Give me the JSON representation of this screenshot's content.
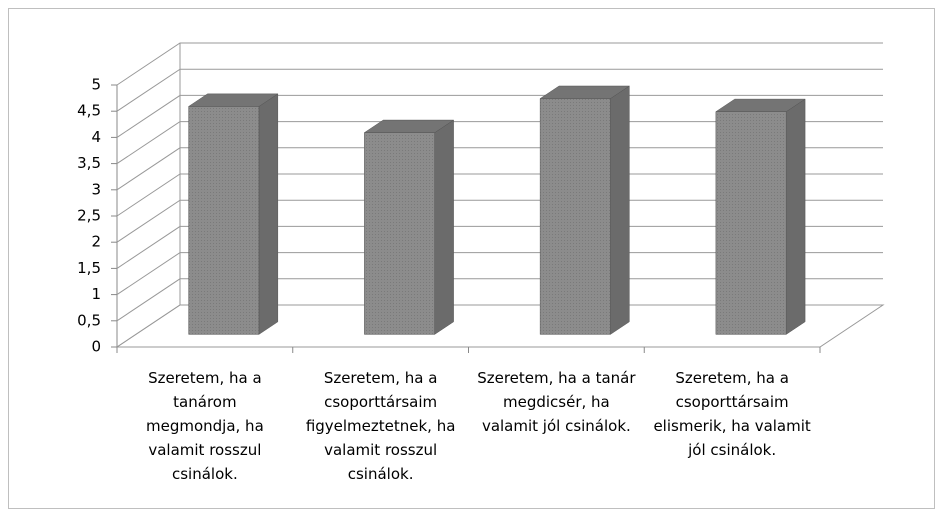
{
  "chart_data": {
    "type": "bar3d",
    "categories": [
      "Szeretem, ha a tanárom megmondja, ha valamit rosszul csinálok.",
      "Szeretem, ha a csoporttársaim figyelmeztetnek, ha valamit rosszul csinálok.",
      "Szeretem, ha a tanár megdicsér, ha valamit jól csinálok.",
      "Szeretem, ha a csoporttársaim elismerik, ha valamit jól csinálok."
    ],
    "values": [
      4.35,
      3.85,
      4.5,
      4.25
    ],
    "color": "#8c8c8c",
    "ylim": [
      0,
      5
    ],
    "yticks": [
      0,
      {
        "value": 0.5,
        "label": "0,5"
      },
      1,
      {
        "value": 1.5,
        "label": "1,5"
      },
      2,
      {
        "value": 2.5,
        "label": "2,5"
      },
      3,
      {
        "value": 3.5,
        "label": "3,5"
      },
      4,
      {
        "value": 4.5,
        "label": "4,5"
      },
      5
    ],
    "grid": true
  }
}
